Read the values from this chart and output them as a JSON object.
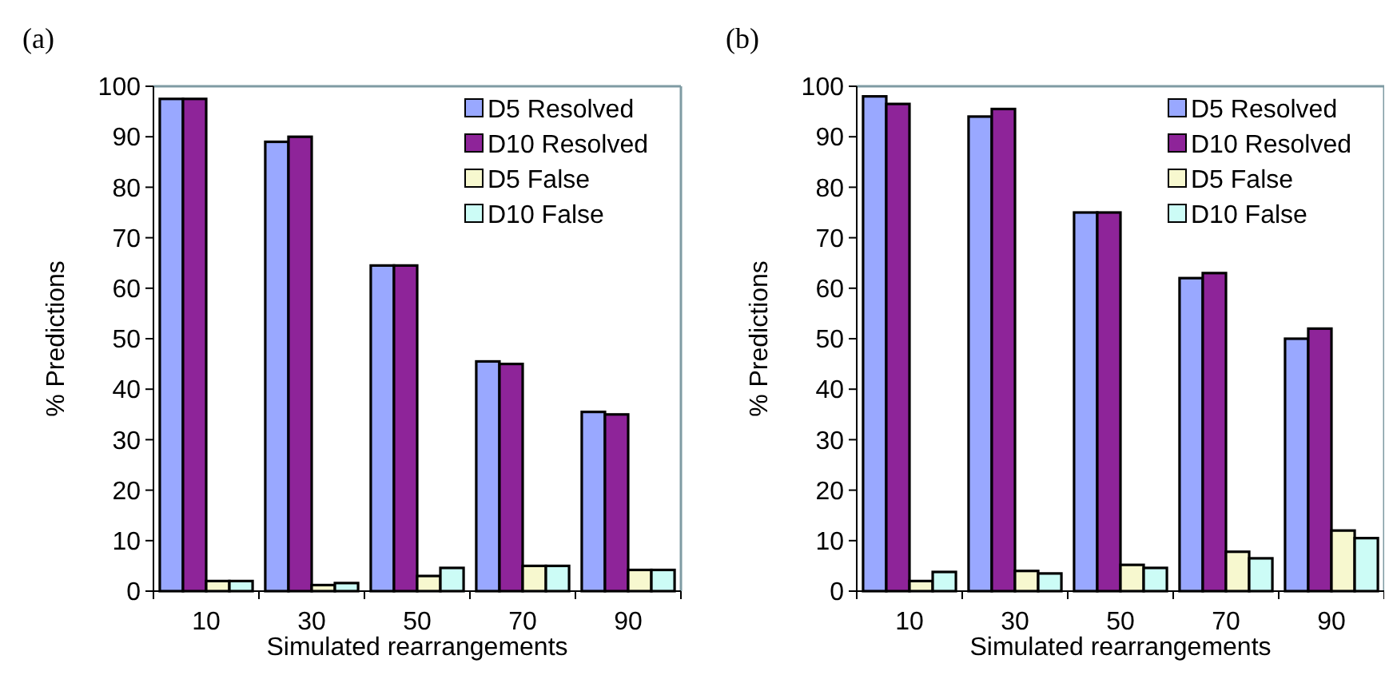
{
  "chart_data": [
    {
      "type": "bar",
      "title": "(a)",
      "xlabel": "Simulated rearrangements",
      "ylabel": "% Predictions",
      "categories": [
        "10",
        "30",
        "50",
        "70",
        "90"
      ],
      "ylim": [
        0,
        100
      ],
      "yticks": [
        0,
        10,
        20,
        30,
        40,
        50,
        60,
        70,
        80,
        90,
        100
      ],
      "legend": "top right",
      "grid": false,
      "series": [
        {
          "name": "D5 Resolved",
          "color": "#99a8ff",
          "values": [
            97.5,
            89,
            64.5,
            45.5,
            35.5
          ]
        },
        {
          "name": "D10 Resolved",
          "color": "#8e2499",
          "values": [
            97.5,
            90,
            64.5,
            45,
            35
          ]
        },
        {
          "name": "D5 False",
          "color": "#f7f8cf",
          "values": [
            2,
            1.2,
            3,
            5,
            4.2
          ]
        },
        {
          "name": "D10 False",
          "color": "#ccfcf6",
          "values": [
            2,
            1.6,
            4.6,
            5,
            4.2
          ]
        }
      ]
    },
    {
      "type": "bar",
      "title": "(b)",
      "xlabel": "Simulated rearrangements",
      "ylabel": "% Predictions",
      "categories": [
        "10",
        "30",
        "50",
        "70",
        "90"
      ],
      "ylim": [
        0,
        100
      ],
      "yticks": [
        0,
        10,
        20,
        30,
        40,
        50,
        60,
        70,
        80,
        90,
        100
      ],
      "legend": "top right",
      "grid": false,
      "series": [
        {
          "name": "D5 Resolved",
          "color": "#99a8ff",
          "values": [
            98,
            94,
            75,
            62,
            50
          ]
        },
        {
          "name": "D10 Resolved",
          "color": "#8e2499",
          "values": [
            96.5,
            95.5,
            75,
            63,
            52
          ]
        },
        {
          "name": "D5 False",
          "color": "#f7f8cf",
          "values": [
            2,
            4,
            5.2,
            7.8,
            12
          ]
        },
        {
          "name": "D10 False",
          "color": "#ccfcf6",
          "values": [
            3.8,
            3.5,
            4.6,
            6.5,
            10.5
          ]
        }
      ]
    }
  ]
}
